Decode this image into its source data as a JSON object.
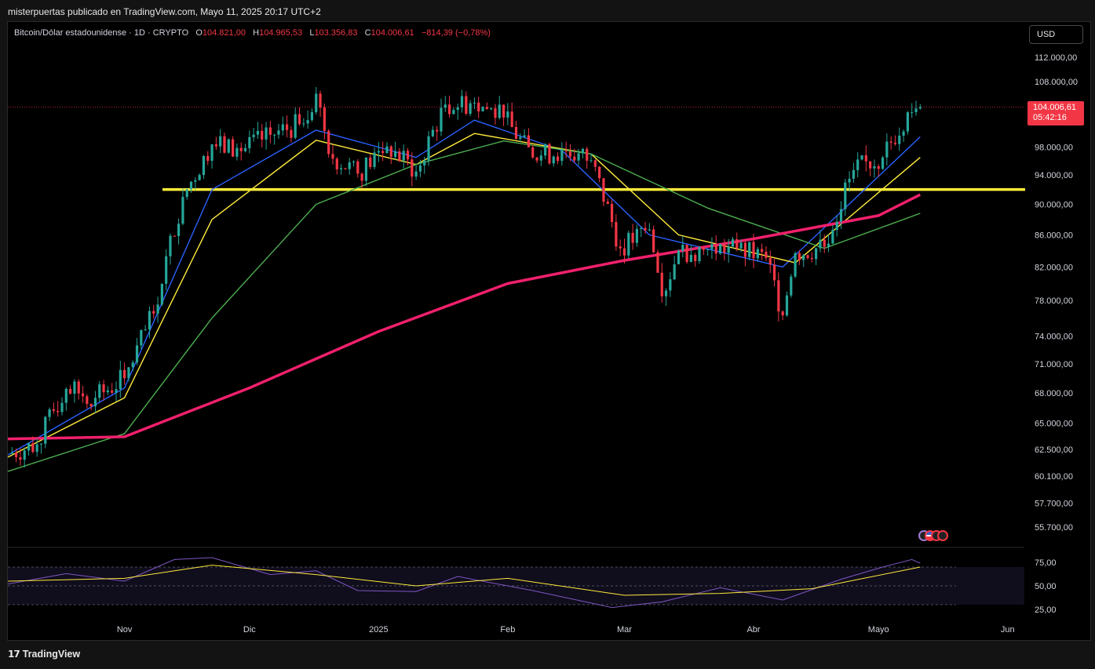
{
  "header": {
    "text": "misterpuertas publicado en TradingView.com, Mayo 11, 2025 20:17 UTC+2"
  },
  "legend": {
    "symbol": "Bitcoin/Dólar estadounidense · 1D · CRYPTO",
    "o_label": "O",
    "o_value": "104.821,00",
    "h_label": "H",
    "h_value": "104.965,53",
    "l_label": "L",
    "l_value": "103.356,83",
    "c_label": "C",
    "c_value": "104.006,61",
    "change": "−814,39 (−0,78%)"
  },
  "currency_button": "USD",
  "last_price": {
    "price": "104.006,61",
    "countdown": "05:42:16"
  },
  "footer": {
    "brand": "TradingView"
  },
  "colors": {
    "up": "#26a69a",
    "down": "#f23645",
    "ema_blue": "#2962ff",
    "ema_yellow": "#ffeb3b",
    "ema_green": "#4caf50",
    "ema_red": "#f0206c",
    "support": "#ffeb3b",
    "rsi": "#7e57c2",
    "rsi_ma": "#ffeb3b"
  },
  "chart_data": {
    "type": "candlestick",
    "scale": "log",
    "price_ticks": [
      "112.000,00",
      "108.000,00",
      "98.000,00",
      "94.000,00",
      "90.000,00",
      "86.000,00",
      "82.000,00",
      "78.000,00",
      "74.000,00",
      "71.000,00",
      "68.000,00",
      "65.000,00",
      "62.500,00",
      "60.100,00",
      "57.700,00",
      "55.700,00"
    ],
    "price_tick_values": [
      112000,
      108000,
      98000,
      94000,
      90000,
      86000,
      82000,
      78000,
      74000,
      71000,
      68000,
      65000,
      62500,
      60100,
      57700,
      55700
    ],
    "x_ticks": [
      {
        "label": "Nov",
        "date": "2024-11-01"
      },
      {
        "label": "Dic",
        "date": "2024-12-01"
      },
      {
        "label": "2025",
        "date": "2025-01-01"
      },
      {
        "label": "Feb",
        "date": "2025-02-01"
      },
      {
        "label": "Mar",
        "date": "2025-03-01"
      },
      {
        "label": "Abr",
        "date": "2025-04-01"
      },
      {
        "label": "Mayo",
        "date": "2025-05-01"
      },
      {
        "label": "Jun",
        "date": "2025-06-01"
      }
    ],
    "x_range": [
      "2024-10-04",
      "2025-06-05"
    ],
    "support_level": 92000,
    "last_close": 104006.61,
    "closes_weekly": [
      {
        "date": "2024-10-04",
        "close": 62100
      },
      {
        "date": "2024-10-11",
        "close": 63000
      },
      {
        "date": "2024-10-18",
        "close": 68400
      },
      {
        "date": "2024-10-25",
        "close": 67500
      },
      {
        "date": "2024-11-01",
        "close": 69500
      },
      {
        "date": "2024-11-08",
        "close": 76500
      },
      {
        "date": "2024-11-15",
        "close": 91000
      },
      {
        "date": "2024-11-22",
        "close": 98400
      },
      {
        "date": "2024-11-29",
        "close": 97400
      },
      {
        "date": "2024-12-06",
        "close": 99800
      },
      {
        "date": "2024-12-13",
        "close": 101400
      },
      {
        "date": "2024-12-17",
        "close": 106100
      },
      {
        "date": "2024-12-20",
        "close": 97000
      },
      {
        "date": "2024-12-27",
        "close": 94200
      },
      {
        "date": "2025-01-03",
        "close": 98100
      },
      {
        "date": "2025-01-10",
        "close": 94500
      },
      {
        "date": "2025-01-17",
        "close": 104400
      },
      {
        "date": "2025-01-24",
        "close": 104700
      },
      {
        "date": "2025-01-31",
        "close": 102400
      },
      {
        "date": "2025-02-07",
        "close": 96500
      },
      {
        "date": "2025-02-14",
        "close": 97500
      },
      {
        "date": "2025-02-21",
        "close": 96100
      },
      {
        "date": "2025-02-28",
        "close": 84300
      },
      {
        "date": "2025-03-07",
        "close": 86700
      },
      {
        "date": "2025-03-10",
        "close": 78500
      },
      {
        "date": "2025-03-14",
        "close": 84000
      },
      {
        "date": "2025-03-21",
        "close": 84200
      },
      {
        "date": "2025-03-28",
        "close": 84300
      },
      {
        "date": "2025-04-04",
        "close": 83100
      },
      {
        "date": "2025-04-08",
        "close": 76300
      },
      {
        "date": "2025-04-11",
        "close": 83700
      },
      {
        "date": "2025-04-18",
        "close": 84500
      },
      {
        "date": "2025-04-25",
        "close": 94700
      },
      {
        "date": "2025-05-02",
        "close": 96500
      },
      {
        "date": "2025-05-08",
        "close": 103200
      },
      {
        "date": "2025-05-11",
        "close": 104006.61
      }
    ],
    "ema_series": [
      {
        "name": "EMA fast",
        "color_key": "ema_blue",
        "values": [
          {
            "date": "2024-10-04",
            "v": 62000
          },
          {
            "date": "2024-11-01",
            "v": 68500
          },
          {
            "date": "2024-11-22",
            "v": 92000
          },
          {
            "date": "2024-12-17",
            "v": 100500
          },
          {
            "date": "2025-01-10",
            "v": 96500
          },
          {
            "date": "2025-01-24",
            "v": 102000
          },
          {
            "date": "2025-02-14",
            "v": 97500
          },
          {
            "date": "2025-03-07",
            "v": 86000
          },
          {
            "date": "2025-04-08",
            "v": 82000
          },
          {
            "date": "2025-05-11",
            "v": 99500
          }
        ]
      },
      {
        "name": "EMA slow",
        "color_key": "ema_yellow",
        "values": [
          {
            "date": "2024-10-04",
            "v": 61800
          },
          {
            "date": "2024-11-01",
            "v": 67500
          },
          {
            "date": "2024-11-22",
            "v": 88000
          },
          {
            "date": "2024-12-17",
            "v": 99000
          },
          {
            "date": "2025-01-10",
            "v": 95500
          },
          {
            "date": "2025-01-24",
            "v": 100000
          },
          {
            "date": "2025-02-21",
            "v": 97000
          },
          {
            "date": "2025-03-14",
            "v": 86000
          },
          {
            "date": "2025-04-11",
            "v": 82500
          },
          {
            "date": "2025-05-11",
            "v": 96500
          }
        ]
      },
      {
        "name": "EMA 50",
        "color_key": "ema_green",
        "values": [
          {
            "date": "2024-10-04",
            "v": 60500
          },
          {
            "date": "2024-11-01",
            "v": 64000
          },
          {
            "date": "2024-11-22",
            "v": 76000
          },
          {
            "date": "2024-12-17",
            "v": 90000
          },
          {
            "date": "2025-01-10",
            "v": 95500
          },
          {
            "date": "2025-01-31",
            "v": 98900
          },
          {
            "date": "2025-02-21",
            "v": 97000
          },
          {
            "date": "2025-03-21",
            "v": 89500
          },
          {
            "date": "2025-04-18",
            "v": 84300
          },
          {
            "date": "2025-05-11",
            "v": 88800
          }
        ]
      },
      {
        "name": "EMA 200",
        "color_key": "ema_red",
        "values": [
          {
            "date": "2024-10-04",
            "v": 63500
          },
          {
            "date": "2024-11-01",
            "v": 63700
          },
          {
            "date": "2024-12-01",
            "v": 68500
          },
          {
            "date": "2025-01-01",
            "v": 74500
          },
          {
            "date": "2025-02-01",
            "v": 80000
          },
          {
            "date": "2025-03-01",
            "v": 82800
          },
          {
            "date": "2025-04-01",
            "v": 85500
          },
          {
            "date": "2025-05-01",
            "v": 88500
          },
          {
            "date": "2025-05-11",
            "v": 91300
          }
        ]
      }
    ],
    "rsi": {
      "ticks": [
        "75,00",
        "50,00",
        "25,00"
      ],
      "tick_values": [
        75,
        50,
        25
      ],
      "band": [
        30,
        70
      ],
      "values": [
        {
          "date": "2024-10-04",
          "v": 52
        },
        {
          "date": "2024-10-18",
          "v": 63
        },
        {
          "date": "2024-11-01",
          "v": 55
        },
        {
          "date": "2024-11-13",
          "v": 78
        },
        {
          "date": "2024-11-22",
          "v": 80
        },
        {
          "date": "2024-12-06",
          "v": 62
        },
        {
          "date": "2024-12-17",
          "v": 66
        },
        {
          "date": "2024-12-27",
          "v": 45
        },
        {
          "date": "2025-01-10",
          "v": 44
        },
        {
          "date": "2025-01-20",
          "v": 60
        },
        {
          "date": "2025-02-07",
          "v": 45
        },
        {
          "date": "2025-02-26",
          "v": 27
        },
        {
          "date": "2025-03-10",
          "v": 33
        },
        {
          "date": "2025-03-24",
          "v": 48
        },
        {
          "date": "2025-04-08",
          "v": 35
        },
        {
          "date": "2025-04-22",
          "v": 57
        },
        {
          "date": "2025-05-02",
          "v": 70
        },
        {
          "date": "2025-05-09",
          "v": 78
        },
        {
          "date": "2025-05-11",
          "v": 74
        }
      ],
      "ma": [
        {
          "date": "2024-10-04",
          "v": 55
        },
        {
          "date": "2024-11-01",
          "v": 58
        },
        {
          "date": "2024-11-22",
          "v": 72
        },
        {
          "date": "2024-12-17",
          "v": 62
        },
        {
          "date": "2025-01-10",
          "v": 50
        },
        {
          "date": "2025-02-01",
          "v": 58
        },
        {
          "date": "2025-03-01",
          "v": 40
        },
        {
          "date": "2025-03-24",
          "v": 42
        },
        {
          "date": "2025-04-15",
          "v": 47
        },
        {
          "date": "2025-05-11",
          "v": 70
        }
      ]
    }
  }
}
